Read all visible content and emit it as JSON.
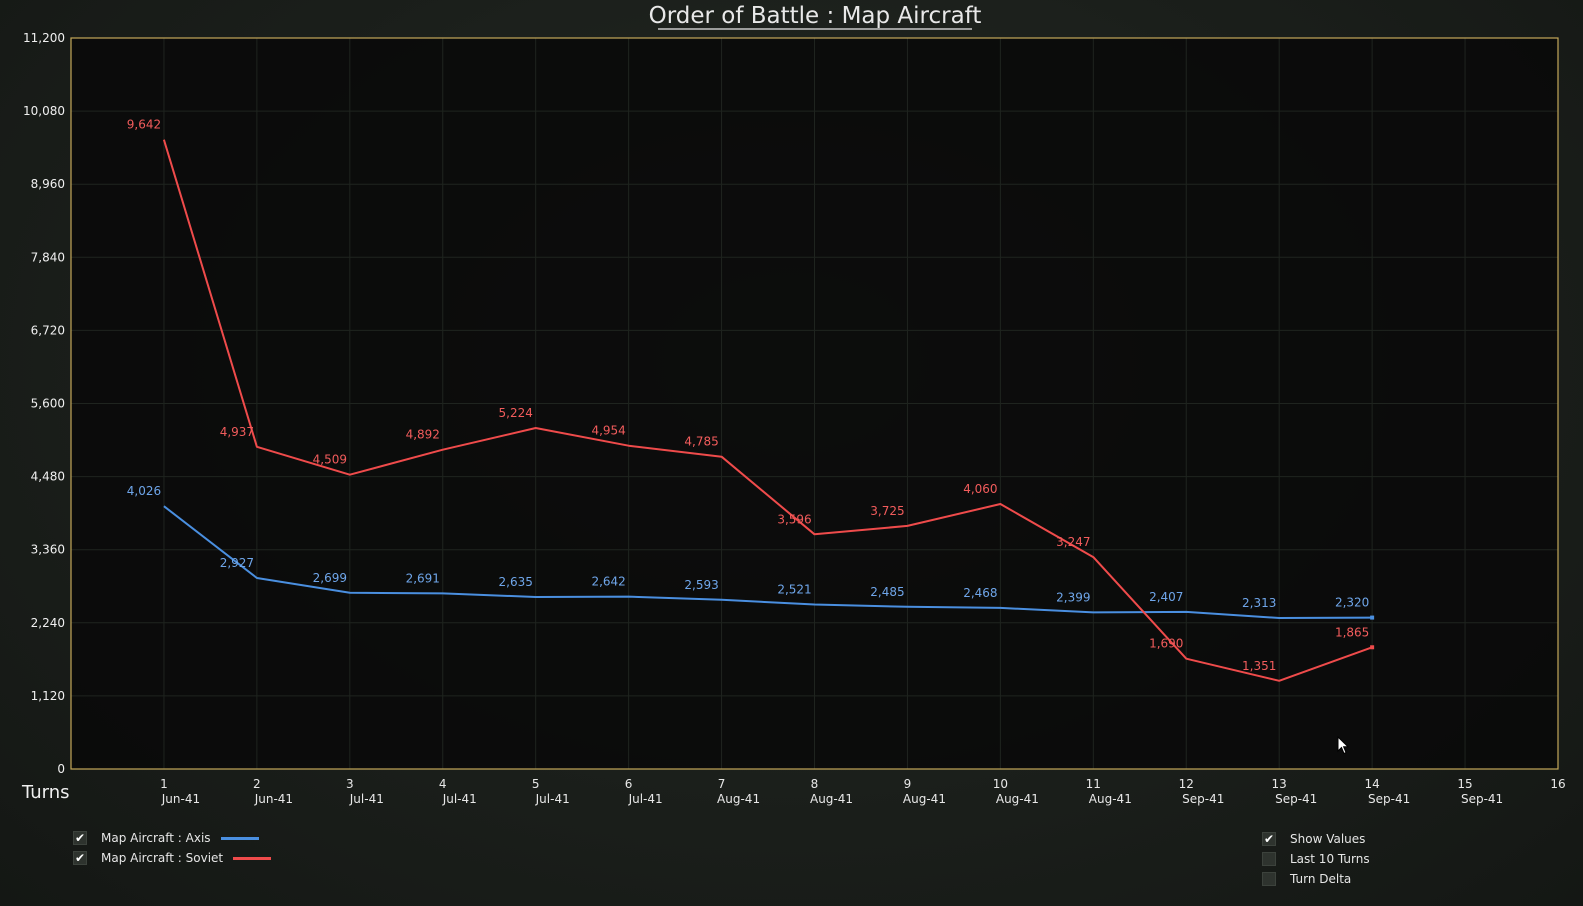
{
  "title": "Order of Battle : Map Aircraft",
  "legend": [
    {
      "label": "Map Aircraft : Axis",
      "color": "#4a8fe0",
      "checked": true
    },
    {
      "label": "Map Aircraft : Soviet",
      "color": "#ef4b4b",
      "checked": true
    }
  ],
  "options": [
    {
      "label": "Show Values",
      "checked": true
    },
    {
      "label": "Last 10 Turns",
      "checked": false
    },
    {
      "label": "Turn Delta",
      "checked": false
    }
  ],
  "chart_data": {
    "type": "line",
    "title": "Order of Battle : Map Aircraft",
    "xlabel": "Turns",
    "ylabel": "",
    "ylim": [
      0,
      11200
    ],
    "xlim": [
      0,
      16
    ],
    "y_ticks": [
      "0",
      "1,120",
      "2,240",
      "3,360",
      "4,480",
      "5,600",
      "6,720",
      "7,840",
      "8,960",
      "10,080",
      "11,200"
    ],
    "x_ticks": [
      {
        "turn": "1",
        "date": "Jun-41"
      },
      {
        "turn": "2",
        "date": "Jun-41"
      },
      {
        "turn": "3",
        "date": "Jul-41"
      },
      {
        "turn": "4",
        "date": "Jul-41"
      },
      {
        "turn": "5",
        "date": "Jul-41"
      },
      {
        "turn": "6",
        "date": "Jul-41"
      },
      {
        "turn": "7",
        "date": "Aug-41"
      },
      {
        "turn": "8",
        "date": "Aug-41"
      },
      {
        "turn": "9",
        "date": "Aug-41"
      },
      {
        "turn": "10",
        "date": "Aug-41"
      },
      {
        "turn": "11",
        "date": "Aug-41"
      },
      {
        "turn": "12",
        "date": "Sep-41"
      },
      {
        "turn": "13",
        "date": "Sep-41"
      },
      {
        "turn": "14",
        "date": "Sep-41"
      },
      {
        "turn": "15",
        "date": "Sep-41"
      },
      {
        "turn": "16",
        "date": ""
      }
    ],
    "x": [
      1,
      2,
      3,
      4,
      5,
      6,
      7,
      8,
      9,
      10,
      11,
      12,
      13,
      14
    ],
    "series": [
      {
        "name": "Map Aircraft : Axis",
        "color": "#4a8fe0",
        "label_color": "#6fa6ea",
        "values": [
          4026,
          2927,
          2699,
          2691,
          2635,
          2642,
          2593,
          2521,
          2485,
          2468,
          2399,
          2407,
          2313,
          2320
        ],
        "labels": [
          "4,026",
          "2,927",
          "2,699",
          "2,691",
          "2,635",
          "2,642",
          "2,593",
          "2,521",
          "2,485",
          "2,468",
          "2,399",
          "2,407",
          "2,313",
          "2,320"
        ]
      },
      {
        "name": "Map Aircraft : Soviet",
        "color": "#ef4b4b",
        "label_color": "#f25c5c",
        "values": [
          9642,
          4937,
          4509,
          4892,
          5224,
          4954,
          4785,
          3596,
          3725,
          4060,
          3247,
          1690,
          1351,
          1865
        ],
        "labels": [
          "9,642",
          "4,937",
          "4,509",
          "4,892",
          "5,224",
          "4,954",
          "4,785",
          "3,596",
          "3,725",
          "4,060",
          "3,247",
          "1,690",
          "1,351",
          "1,865"
        ]
      }
    ],
    "grid": true,
    "legend_position": "bottom-left"
  }
}
